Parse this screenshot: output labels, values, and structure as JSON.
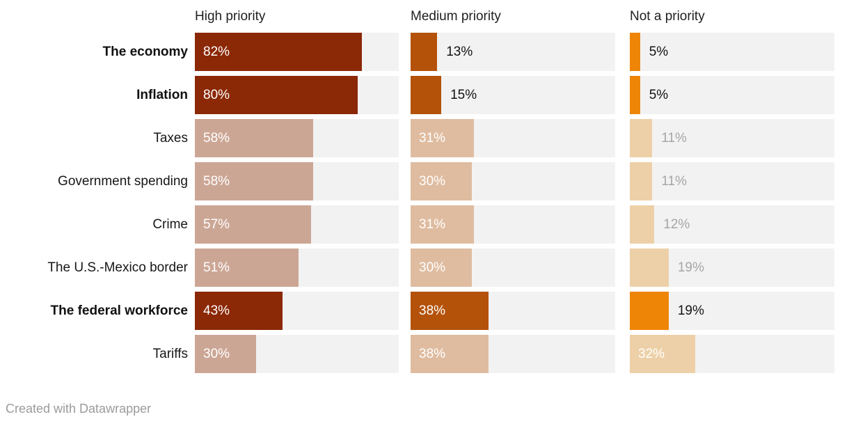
{
  "chart_data": {
    "type": "bar",
    "layout": "split-bars-small-multiples",
    "columns": [
      "High priority",
      "Medium priority",
      "Not a priority"
    ],
    "axis_max": 100,
    "unit": "%",
    "rows": [
      {
        "label": "The economy",
        "bold": true,
        "values": [
          82,
          13,
          5
        ]
      },
      {
        "label": "Inflation",
        "bold": true,
        "values": [
          80,
          15,
          5
        ]
      },
      {
        "label": "Taxes",
        "bold": false,
        "values": [
          58,
          31,
          11
        ]
      },
      {
        "label": "Government spending",
        "bold": false,
        "values": [
          58,
          30,
          11
        ]
      },
      {
        "label": "Crime",
        "bold": false,
        "values": [
          57,
          31,
          12
        ]
      },
      {
        "label": "The U.S.-Mexico border",
        "bold": false,
        "values": [
          51,
          30,
          19
        ]
      },
      {
        "label": "The federal workforce",
        "bold": true,
        "values": [
          43,
          38,
          19
        ]
      },
      {
        "label": "Tariffs",
        "bold": false,
        "values": [
          30,
          38,
          32
        ]
      }
    ],
    "colors": {
      "highlight": [
        "#8b2806",
        "#b4520a",
        "#ee8507"
      ],
      "muted": [
        "#cca695",
        "#dfbca0",
        "#edd0a7"
      ],
      "track": "#f2f2f2",
      "label_inside": "#ffffff",
      "label_outside_dark": "#131313",
      "label_outside_gray": "#a6a6a6"
    },
    "inside_label_threshold": 25,
    "attribution": "Created with Datawrapper"
  }
}
